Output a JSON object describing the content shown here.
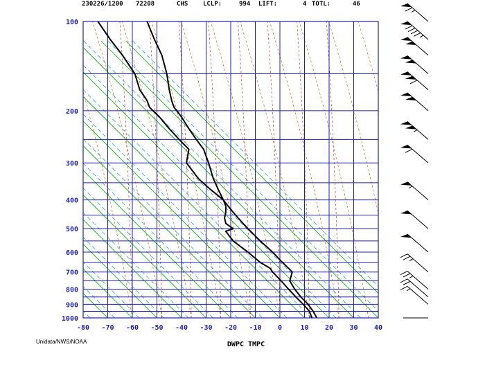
{
  "header": {
    "time": "230226/1200",
    "station_id": "72208",
    "station_name": "CHS",
    "lclp_label": "LCLP:",
    "lclp_value": "994",
    "lift_label": "LIFT:",
    "lift_value": "4",
    "totl_label": "TOTL:",
    "totl_value": "46"
  },
  "credit": "Unidata/NWS/NOAA",
  "colors": {
    "frame": "#1f1fb0",
    "isotherm": "#00b000",
    "dry_adiabat": "#cc6600",
    "moist_adiabat": "#cc3333",
    "mixing_ratio": "#00a0c0",
    "profile": "#000000"
  },
  "chart_data": {
    "type": "line",
    "title": "",
    "xlabel": "DWPC TMPC",
    "ylabel": "",
    "xlim": [
      -80,
      40
    ],
    "ylim": [
      1000,
      100
    ],
    "y_scale": "log",
    "x_ticks": [
      -80,
      -70,
      -60,
      -50,
      -40,
      -30,
      -20,
      -10,
      0,
      10,
      20,
      30,
      40
    ],
    "x_tick_labels": [
      "-80",
      "-70",
      "-60",
      "-50",
      "-40",
      "-30",
      "-20",
      "-10",
      "0",
      "10",
      "20",
      "30",
      "40"
    ],
    "y_ticks": [
      1000,
      900,
      800,
      700,
      600,
      500,
      400,
      300,
      200,
      100
    ],
    "y_tick_labels": [
      "1000",
      "900",
      "800",
      "700",
      "600",
      "500",
      "400",
      "300",
      "200",
      "100"
    ],
    "series": [
      {
        "pressure": [
          1000,
          950,
          900,
          850,
          800,
          750,
          700,
          680,
          650,
          600,
          550,
          500,
          480,
          460,
          440,
          420,
          400,
          370,
          340,
          300,
          270,
          250,
          230,
          210,
          195,
          185,
          170,
          150,
          130,
          115,
          100
        ],
        "temp_x": [
          15,
          13.5,
          11.5,
          8.5,
          6,
          4,
          5,
          3.5,
          1,
          -3,
          -8,
          -13,
          -15,
          -17,
          -19,
          -21,
          -23,
          -25,
          -27,
          -29,
          -31,
          -34,
          -37,
          -40,
          -43,
          -44,
          -45,
          -46,
          -48,
          -51,
          -54
        ]
      },
      {
        "pressure": [
          1000,
          950,
          900,
          850,
          800,
          750,
          700,
          680,
          650,
          600,
          550,
          530,
          510,
          500,
          480,
          460,
          440,
          420,
          400,
          370,
          340,
          300,
          270,
          250,
          230,
          210,
          195,
          185,
          170,
          150,
          130,
          115,
          100
        ],
        "temp_x": [
          13,
          12,
          9.5,
          6.5,
          3.5,
          0.5,
          -3,
          -4,
          -8,
          -13,
          -19,
          -20.5,
          -22,
          -19,
          -22,
          -22.5,
          -22,
          -22,
          -23,
          -28,
          -33,
          -38,
          -37,
          -41,
          -45,
          -49,
          -53,
          -54,
          -57,
          -59,
          -64,
          -69,
          -74
        ]
      }
    ],
    "winds": [
      {
        "pressure": 1000,
        "barb": "calm"
      },
      {
        "pressure": 900,
        "barb": "15kt"
      },
      {
        "pressure": 850,
        "barb": "20kt"
      },
      {
        "pressure": 800,
        "barb": "25kt"
      },
      {
        "pressure": 700,
        "barb": "25kt"
      },
      {
        "pressure": 600,
        "barb": "50kt"
      },
      {
        "pressure": 500,
        "barb": "50kt"
      },
      {
        "pressure": 400,
        "barb": "55kt"
      },
      {
        "pressure": 300,
        "barb": "60kt"
      },
      {
        "pressure": 250,
        "barb": "105kt"
      },
      {
        "pressure": 200,
        "barb": "100kt"
      },
      {
        "pressure": 170,
        "barb": "110kt"
      },
      {
        "pressure": 150,
        "barb": "100kt"
      },
      {
        "pressure": 130,
        "barb": "100kt"
      },
      {
        "pressure": 115,
        "barb": "95kt"
      },
      {
        "pressure": 100,
        "barb": "65kt"
      }
    ],
    "grid": true,
    "legend": "none"
  }
}
